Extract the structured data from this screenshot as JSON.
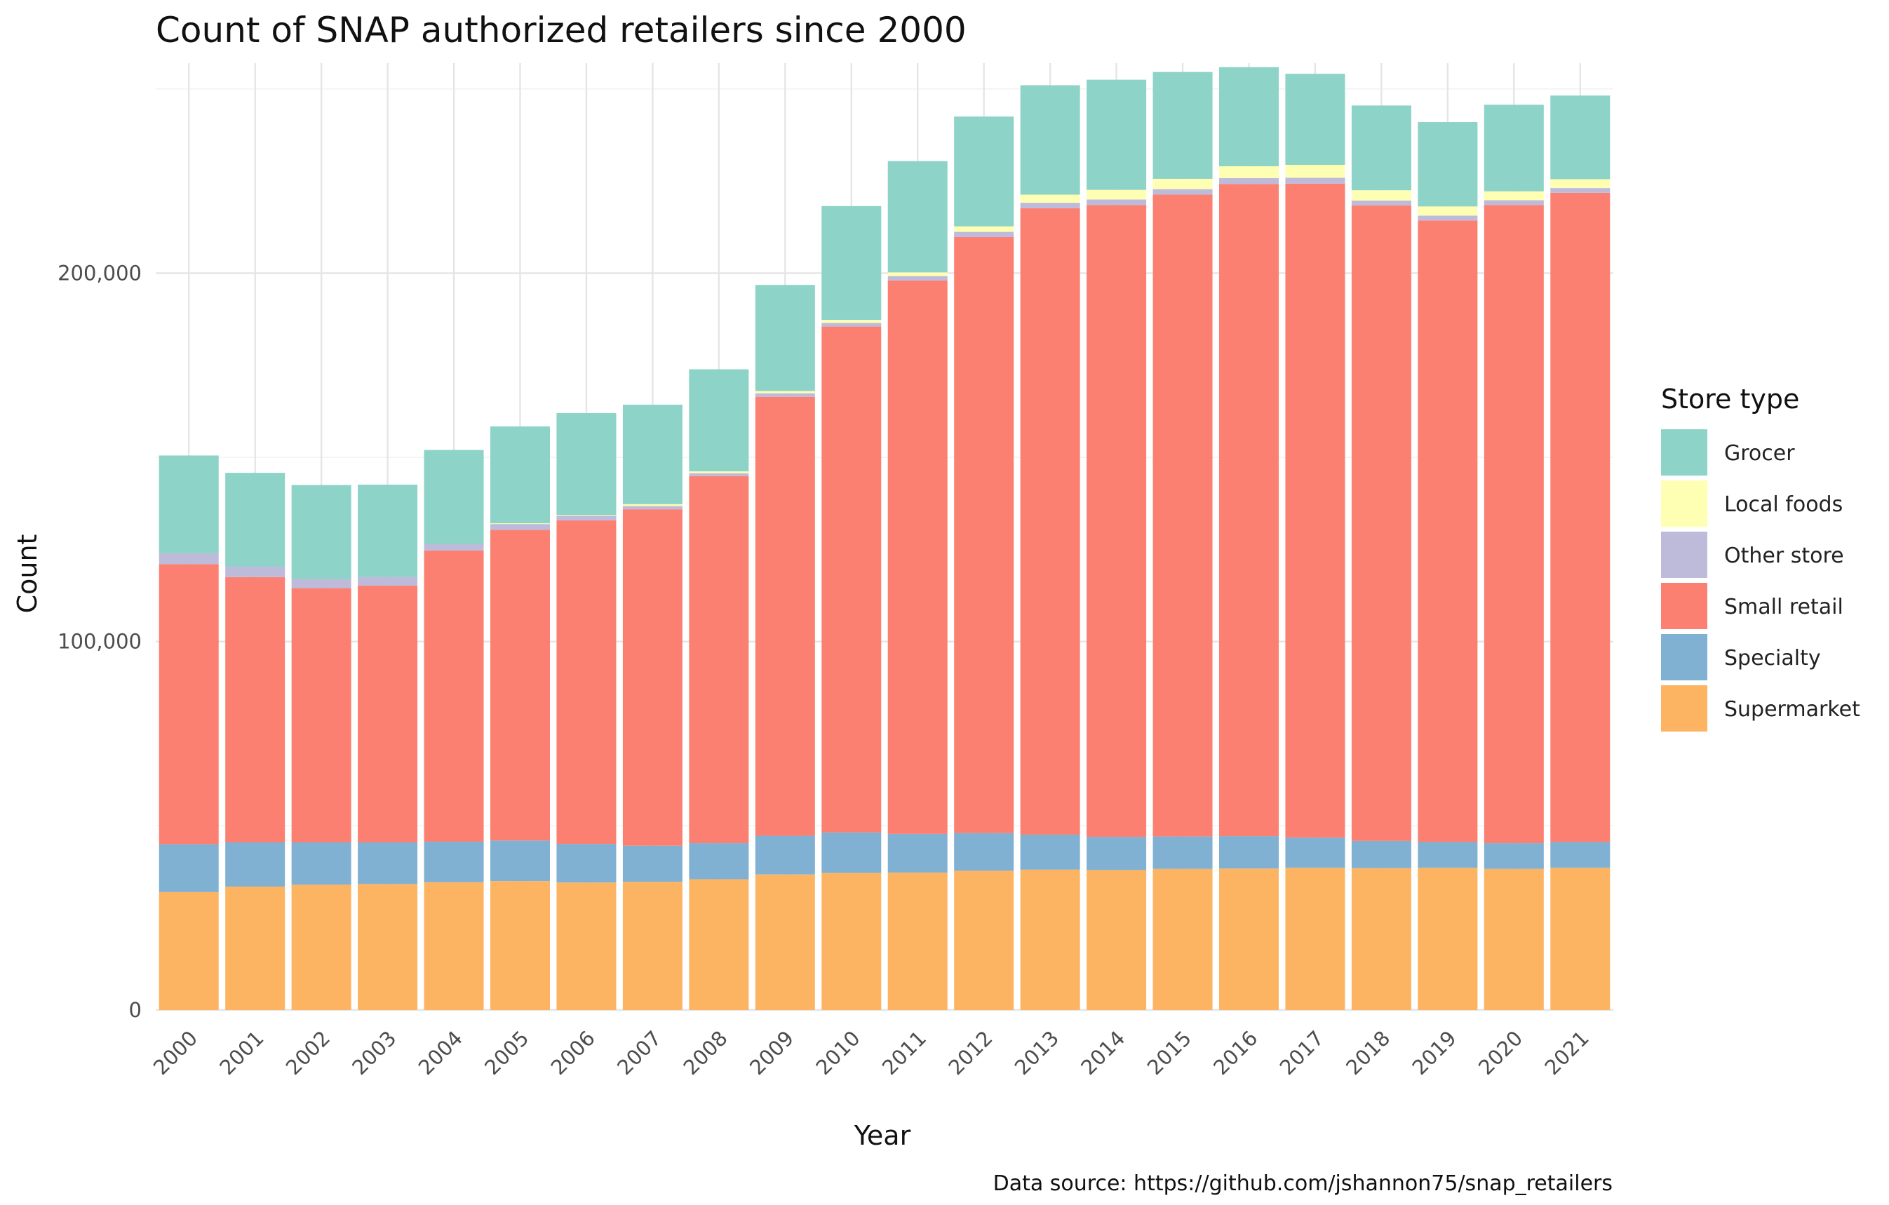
{
  "chart_data": {
    "type": "bar",
    "stacked": true,
    "title": "Count of SNAP authorized retailers since 2000",
    "xlabel": "Year",
    "ylabel": "Count",
    "caption": "Data source: https://github.com/jshannon75/snap_retailers",
    "legend_title": "Store type",
    "legend_position": "right",
    "grid": true,
    "ylim": [
      0,
      257000
    ],
    "y_ticks": [
      0,
      100000,
      200000
    ],
    "y_tick_labels": [
      "0",
      "100,000",
      "200,000"
    ],
    "categories": [
      "2000",
      "2001",
      "2002",
      "2003",
      "2004",
      "2005",
      "2006",
      "2007",
      "2008",
      "2009",
      "2010",
      "2011",
      "2012",
      "2013",
      "2014",
      "2015",
      "2016",
      "2017",
      "2018",
      "2019",
      "2020",
      "2021"
    ],
    "series": [
      {
        "name": "Supermarket",
        "color": "#FDB462",
        "values": [
          32000,
          33500,
          34000,
          34200,
          34700,
          35000,
          34600,
          34800,
          35500,
          36800,
          37200,
          37300,
          37800,
          38100,
          38000,
          38300,
          38400,
          38600,
          38500,
          38600,
          38300,
          38600
        ]
      },
      {
        "name": "Specialty",
        "color": "#80B1D3",
        "values": [
          13000,
          12000,
          11500,
          11300,
          11000,
          11000,
          10500,
          9800,
          9800,
          10500,
          11000,
          10500,
          10200,
          9500,
          9000,
          8800,
          8800,
          8200,
          7400,
          7000,
          7000,
          7000
        ]
      },
      {
        "name": "Small retail",
        "color": "#FB8072",
        "values": [
          76000,
          72000,
          69000,
          69700,
          79000,
          84300,
          87800,
          91300,
          99600,
          119100,
          137300,
          150200,
          161800,
          170000,
          171500,
          174200,
          177000,
          177500,
          172500,
          168700,
          173200,
          176200
        ]
      },
      {
        "name": "Other store",
        "color": "#BEBADA",
        "values": [
          3000,
          2800,
          2500,
          2300,
          1800,
          1600,
          1300,
          900,
          800,
          1000,
          1000,
          1200,
          1400,
          1500,
          1500,
          1500,
          1600,
          1600,
          1300,
          1300,
          1300,
          1300
        ]
      },
      {
        "name": "Local foods",
        "color": "#FFFFB3",
        "values": [
          0,
          0,
          0,
          0,
          0,
          200,
          200,
          500,
          500,
          600,
          800,
          1000,
          1500,
          2200,
          2600,
          2800,
          3200,
          3500,
          2800,
          2500,
          2400,
          2400
        ]
      },
      {
        "name": "Grocer",
        "color": "#8DD3C7",
        "values": [
          26500,
          25500,
          25500,
          25100,
          25500,
          26300,
          27600,
          27000,
          27700,
          28800,
          30900,
          30200,
          29800,
          29700,
          29900,
          29000,
          26900,
          24700,
          23000,
          22900,
          23500,
          22700
        ]
      }
    ]
  }
}
